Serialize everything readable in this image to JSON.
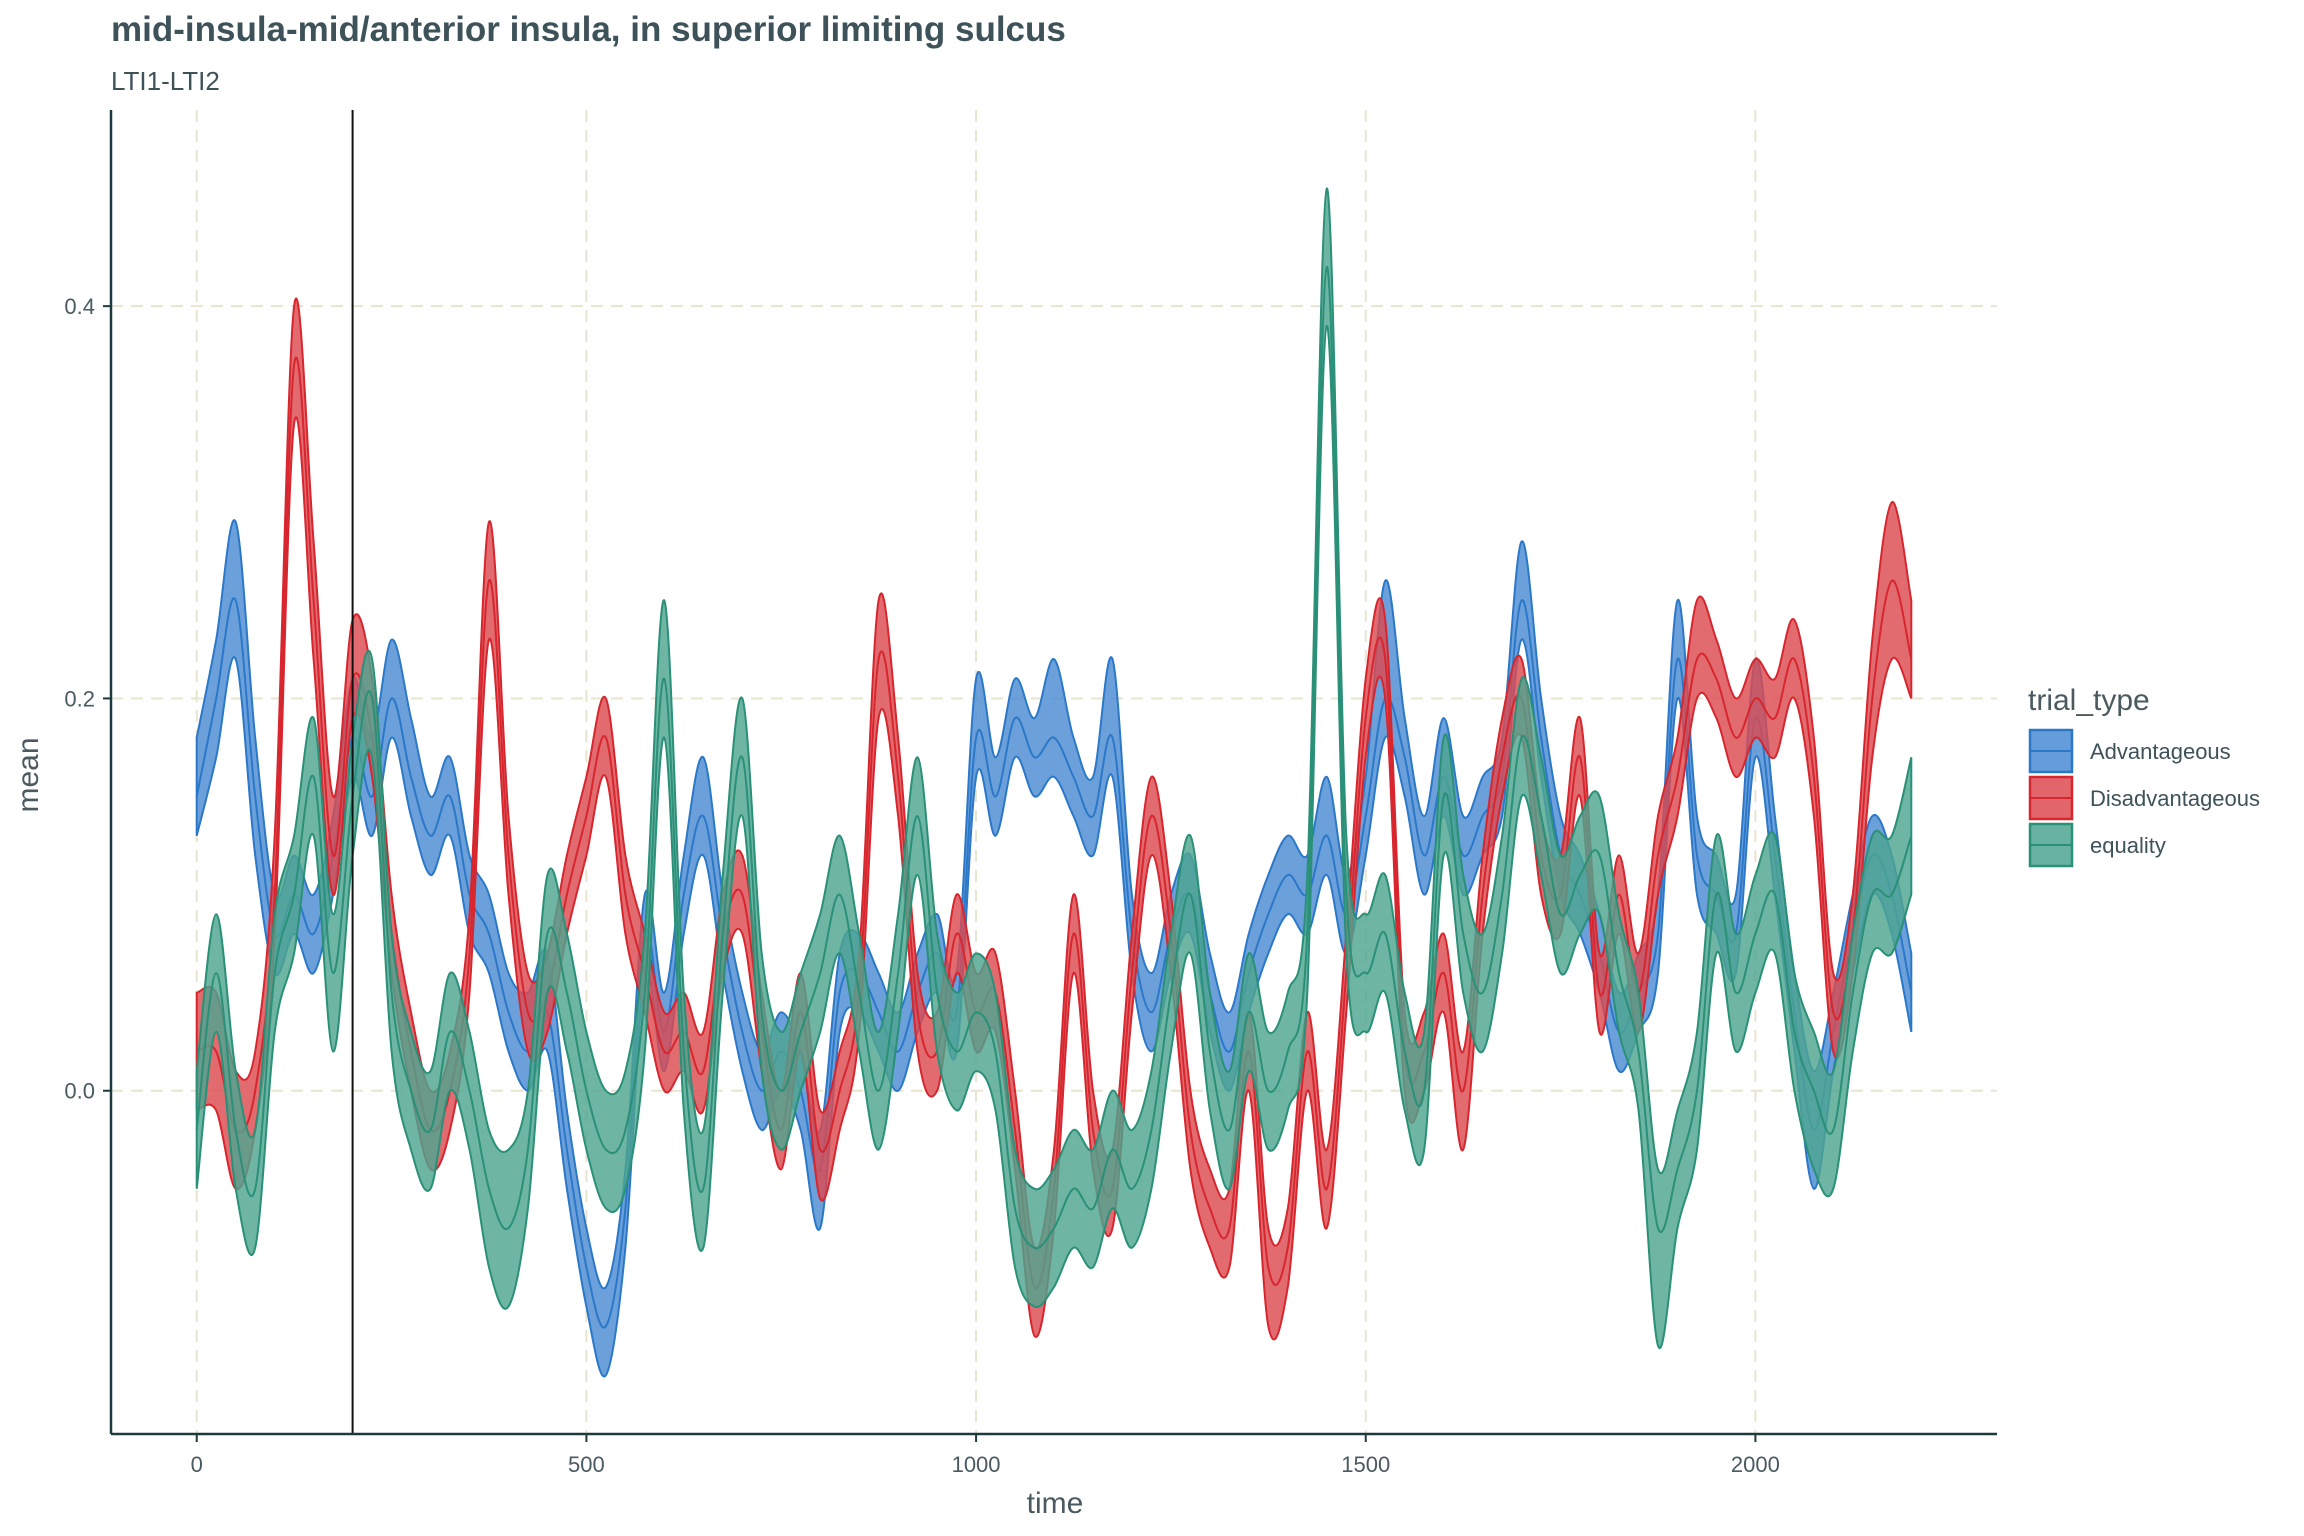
{
  "title": "mid-insula-mid/anterior insula, in superior limiting sulcus",
  "subtitle": "LTI1-LTI2",
  "chart_data": {
    "type": "area",
    "title": "mid-insula-mid/anterior insula, in superior limiting sulcus",
    "subtitle": "LTI1-LTI2",
    "xlabel": "time",
    "ylabel": "mean",
    "xlim": [
      -110,
      2310
    ],
    "ylim": [
      -0.175,
      0.5
    ],
    "xticks": [
      0,
      500,
      1000,
      1500,
      2000
    ],
    "yticks": [
      0.0,
      0.2,
      0.4
    ],
    "xtick_labels": [
      "0",
      "500",
      "1000",
      "1500",
      "2000"
    ],
    "ytick_labels": [
      "0.0",
      "0.2",
      "0.4"
    ],
    "vline_x": 200,
    "grid": "major dashed",
    "legend": {
      "title": "trial_type",
      "position": "right"
    },
    "x": [
      0,
      25,
      50,
      75,
      100,
      125,
      150,
      175,
      200,
      225,
      250,
      275,
      300,
      325,
      350,
      375,
      400,
      425,
      450,
      475,
      500,
      525,
      550,
      575,
      600,
      625,
      650,
      675,
      700,
      725,
      750,
      775,
      800,
      825,
      850,
      875,
      900,
      925,
      950,
      975,
      1000,
      1025,
      1050,
      1075,
      1100,
      1125,
      1150,
      1175,
      1200,
      1225,
      1250,
      1275,
      1300,
      1325,
      1350,
      1375,
      1400,
      1425,
      1450,
      1475,
      1500,
      1525,
      1550,
      1575,
      1600,
      1625,
      1650,
      1675,
      1700,
      1725,
      1750,
      1775,
      1800,
      1825,
      1850,
      1875,
      1900,
      1925,
      1950,
      1975,
      2000,
      2025,
      2050,
      2075,
      2100,
      2125,
      2150,
      2175,
      2200
    ],
    "series": [
      {
        "name": "Advantageous",
        "color": "#2b78c9",
        "fill": "#4a8bd3",
        "mean": [
          0.15,
          0.2,
          0.25,
          0.15,
          0.08,
          0.1,
          0.08,
          0.12,
          0.18,
          0.15,
          0.2,
          0.16,
          0.13,
          0.15,
          0.1,
          0.08,
          0.04,
          0.02,
          0.04,
          -0.03,
          -0.09,
          -0.12,
          -0.06,
          0.08,
          0.03,
          0.1,
          0.14,
          0.08,
          0.03,
          0.0,
          0.02,
          0.0,
          -0.04,
          0.05,
          0.06,
          0.04,
          0.02,
          0.05,
          0.07,
          0.04,
          0.18,
          0.15,
          0.19,
          0.17,
          0.18,
          0.16,
          0.14,
          0.18,
          0.08,
          0.04,
          0.08,
          0.1,
          0.05,
          0.02,
          0.06,
          0.09,
          0.11,
          0.1,
          0.13,
          0.09,
          0.14,
          0.2,
          0.17,
          0.12,
          0.16,
          0.12,
          0.14,
          0.16,
          0.25,
          0.18,
          0.12,
          0.1,
          0.07,
          0.03,
          0.05,
          0.08,
          0.22,
          0.12,
          0.1,
          0.08,
          0.19,
          0.12,
          0.04,
          -0.02,
          0.03,
          0.08,
          0.12,
          0.1,
          0.05
        ],
        "lower": [
          0.13,
          0.17,
          0.22,
          0.12,
          0.06,
          0.08,
          0.06,
          0.1,
          0.16,
          0.13,
          0.18,
          0.14,
          0.11,
          0.13,
          0.08,
          0.06,
          0.02,
          0.0,
          0.02,
          -0.05,
          -0.11,
          -0.145,
          -0.08,
          0.06,
          0.01,
          0.08,
          0.12,
          0.06,
          0.01,
          -0.02,
          0.0,
          -0.02,
          -0.07,
          0.03,
          0.04,
          0.02,
          0.0,
          0.03,
          0.05,
          0.02,
          0.16,
          0.13,
          0.17,
          0.15,
          0.16,
          0.14,
          0.12,
          0.16,
          0.06,
          0.02,
          0.06,
          0.08,
          0.03,
          0.0,
          0.04,
          0.07,
          0.09,
          0.08,
          0.11,
          0.07,
          0.12,
          0.18,
          0.15,
          0.1,
          0.14,
          0.1,
          0.12,
          0.14,
          0.23,
          0.16,
          0.1,
          0.08,
          0.05,
          0.01,
          0.03,
          0.06,
          0.2,
          0.1,
          0.08,
          0.06,
          0.17,
          0.1,
          0.02,
          -0.05,
          0.01,
          0.06,
          0.1,
          0.08,
          0.03
        ],
        "upper": [
          0.18,
          0.23,
          0.29,
          0.18,
          0.1,
          0.12,
          0.1,
          0.14,
          0.21,
          0.18,
          0.23,
          0.19,
          0.15,
          0.17,
          0.12,
          0.1,
          0.06,
          0.05,
          0.07,
          -0.01,
          -0.07,
          -0.1,
          -0.04,
          0.1,
          0.05,
          0.12,
          0.17,
          0.1,
          0.05,
          0.02,
          0.04,
          0.02,
          -0.02,
          0.07,
          0.08,
          0.06,
          0.04,
          0.07,
          0.09,
          0.06,
          0.21,
          0.17,
          0.21,
          0.19,
          0.22,
          0.18,
          0.16,
          0.22,
          0.1,
          0.06,
          0.1,
          0.12,
          0.07,
          0.04,
          0.08,
          0.11,
          0.13,
          0.12,
          0.16,
          0.11,
          0.16,
          0.26,
          0.19,
          0.14,
          0.19,
          0.14,
          0.16,
          0.18,
          0.28,
          0.2,
          0.14,
          0.12,
          0.09,
          0.05,
          0.07,
          0.1,
          0.25,
          0.14,
          0.12,
          0.1,
          0.22,
          0.14,
          0.06,
          0.01,
          0.05,
          0.1,
          0.14,
          0.12,
          0.07
        ]
      },
      {
        "name": "Disadvantageous",
        "color": "#d7262e",
        "fill": "#dc4a50",
        "mean": [
          0.02,
          0.02,
          -0.02,
          0.0,
          0.1,
          0.37,
          0.25,
          0.12,
          0.21,
          0.18,
          0.08,
          0.02,
          -0.02,
          0.0,
          0.07,
          0.26,
          0.12,
          0.04,
          0.05,
          0.1,
          0.14,
          0.18,
          0.1,
          0.06,
          0.02,
          0.03,
          0.01,
          0.08,
          0.1,
          0.03,
          -0.02,
          0.04,
          -0.03,
          0.0,
          0.05,
          0.22,
          0.16,
          0.04,
          0.02,
          0.08,
          0.04,
          0.05,
          -0.02,
          -0.1,
          -0.05,
          0.08,
          -0.02,
          -0.05,
          0.06,
          0.14,
          0.08,
          -0.02,
          -0.06,
          -0.07,
          0.02,
          -0.09,
          -0.08,
          0.02,
          -0.05,
          0.06,
          0.19,
          0.22,
          0.02,
          0.02,
          0.06,
          0.0,
          0.1,
          0.17,
          0.2,
          0.12,
          0.1,
          0.17,
          0.05,
          0.1,
          0.05,
          0.12,
          0.16,
          0.22,
          0.21,
          0.18,
          0.2,
          0.19,
          0.22,
          0.16,
          0.04,
          0.08,
          0.2,
          0.26,
          0.22
        ],
        "lower": [
          -0.01,
          -0.01,
          -0.05,
          -0.02,
          0.08,
          0.34,
          0.22,
          0.1,
          0.19,
          0.16,
          0.06,
          0.0,
          -0.04,
          -0.02,
          0.05,
          0.23,
          0.1,
          0.02,
          0.03,
          0.08,
          0.12,
          0.16,
          0.08,
          0.04,
          0.0,
          0.01,
          -0.01,
          0.06,
          0.08,
          0.01,
          -0.04,
          0.02,
          -0.055,
          -0.02,
          0.03,
          0.19,
          0.14,
          0.02,
          0.0,
          0.06,
          0.02,
          0.03,
          -0.04,
          -0.125,
          -0.07,
          0.06,
          -0.04,
          -0.07,
          0.04,
          0.12,
          0.06,
          -0.04,
          -0.08,
          -0.09,
          0.0,
          -0.12,
          -0.1,
          0.0,
          -0.07,
          0.04,
          0.17,
          0.2,
          0.0,
          0.0,
          0.04,
          -0.03,
          0.08,
          0.15,
          0.18,
          0.1,
          0.08,
          0.15,
          0.03,
          0.08,
          0.03,
          0.1,
          0.14,
          0.2,
          0.19,
          0.16,
          0.18,
          0.17,
          0.2,
          0.14,
          0.02,
          0.06,
          0.17,
          0.22,
          0.2
        ],
        "upper": [
          0.05,
          0.05,
          0.01,
          0.02,
          0.13,
          0.4,
          0.28,
          0.15,
          0.24,
          0.21,
          0.1,
          0.04,
          0.0,
          0.02,
          0.09,
          0.29,
          0.14,
          0.06,
          0.07,
          0.12,
          0.16,
          0.2,
          0.12,
          0.08,
          0.04,
          0.05,
          0.03,
          0.1,
          0.12,
          0.05,
          0.0,
          0.06,
          -0.01,
          0.02,
          0.07,
          0.25,
          0.18,
          0.06,
          0.04,
          0.1,
          0.06,
          0.07,
          0.0,
          -0.08,
          -0.03,
          0.1,
          0.0,
          -0.03,
          0.08,
          0.16,
          0.1,
          0.0,
          -0.04,
          -0.05,
          0.04,
          -0.07,
          -0.06,
          0.04,
          -0.03,
          0.08,
          0.21,
          0.24,
          0.04,
          0.04,
          0.08,
          0.02,
          0.12,
          0.19,
          0.22,
          0.14,
          0.12,
          0.19,
          0.07,
          0.12,
          0.07,
          0.14,
          0.18,
          0.25,
          0.23,
          0.2,
          0.22,
          0.21,
          0.24,
          0.18,
          0.06,
          0.1,
          0.23,
          0.3,
          0.25
        ]
      },
      {
        "name": "equality",
        "color": "#2a9078",
        "fill": "#4ea590",
        "mean": [
          -0.02,
          0.06,
          -0.02,
          -0.05,
          0.06,
          0.1,
          0.16,
          0.06,
          0.15,
          0.2,
          0.05,
          0.0,
          -0.02,
          0.03,
          0.0,
          -0.05,
          -0.07,
          -0.03,
          0.08,
          0.05,
          0.0,
          -0.03,
          -0.02,
          0.05,
          0.21,
          0.02,
          -0.05,
          0.08,
          0.17,
          0.04,
          0.0,
          0.03,
          0.06,
          0.1,
          0.05,
          0.0,
          0.06,
          0.14,
          0.05,
          0.02,
          0.04,
          0.02,
          -0.06,
          -0.08,
          -0.07,
          -0.05,
          -0.06,
          -0.03,
          -0.05,
          -0.02,
          0.05,
          0.1,
          0.02,
          -0.02,
          0.04,
          0.0,
          0.02,
          0.08,
          0.42,
          0.1,
          0.06,
          0.08,
          0.02,
          0.0,
          0.15,
          0.08,
          0.05,
          0.1,
          0.18,
          0.14,
          0.09,
          0.11,
          0.12,
          0.06,
          0.02,
          -0.07,
          -0.04,
          0.0,
          0.1,
          0.05,
          0.08,
          0.1,
          0.03,
          0.0,
          -0.02,
          0.05,
          0.1,
          0.1,
          0.13
        ],
        "lower": [
          -0.05,
          0.03,
          -0.05,
          -0.08,
          0.03,
          0.07,
          0.13,
          0.02,
          0.12,
          0.17,
          0.02,
          -0.03,
          -0.05,
          0.0,
          -0.03,
          -0.09,
          -0.11,
          -0.06,
          0.05,
          0.02,
          -0.03,
          -0.06,
          -0.05,
          0.02,
          0.18,
          -0.01,
          -0.08,
          0.05,
          0.14,
          0.01,
          -0.03,
          0.0,
          0.03,
          0.07,
          0.02,
          -0.03,
          0.03,
          0.11,
          0.02,
          -0.01,
          0.01,
          -0.01,
          -0.09,
          -0.11,
          -0.1,
          -0.08,
          -0.09,
          -0.06,
          -0.08,
          -0.05,
          0.02,
          0.07,
          -0.01,
          -0.05,
          0.01,
          -0.03,
          -0.01,
          0.05,
          0.39,
          0.07,
          0.03,
          0.05,
          -0.01,
          -0.03,
          0.12,
          0.05,
          0.02,
          0.07,
          0.15,
          0.11,
          0.06,
          0.08,
          0.09,
          0.03,
          -0.01,
          -0.13,
          -0.07,
          -0.03,
          0.07,
          0.02,
          0.05,
          0.07,
          0.0,
          -0.04,
          -0.05,
          0.02,
          0.07,
          0.07,
          0.1
        ],
        "upper": [
          0.01,
          0.09,
          0.01,
          -0.02,
          0.09,
          0.13,
          0.19,
          0.09,
          0.18,
          0.22,
          0.08,
          0.03,
          0.01,
          0.06,
          0.03,
          -0.02,
          -0.03,
          0.0,
          0.11,
          0.08,
          0.03,
          0.0,
          0.01,
          0.08,
          0.25,
          0.05,
          -0.02,
          0.11,
          0.2,
          0.07,
          0.03,
          0.06,
          0.09,
          0.13,
          0.08,
          0.03,
          0.09,
          0.17,
          0.08,
          0.05,
          0.07,
          0.05,
          -0.03,
          -0.05,
          -0.04,
          -0.02,
          -0.03,
          0.0,
          -0.02,
          0.01,
          0.08,
          0.13,
          0.05,
          0.01,
          0.07,
          0.03,
          0.05,
          0.11,
          0.46,
          0.13,
          0.09,
          0.11,
          0.05,
          0.03,
          0.18,
          0.11,
          0.08,
          0.13,
          0.21,
          0.17,
          0.12,
          0.14,
          0.15,
          0.09,
          0.05,
          -0.04,
          -0.01,
          0.03,
          0.13,
          0.08,
          0.11,
          0.13,
          0.06,
          0.03,
          0.01,
          0.08,
          0.13,
          0.13,
          0.17
        ]
      }
    ]
  }
}
